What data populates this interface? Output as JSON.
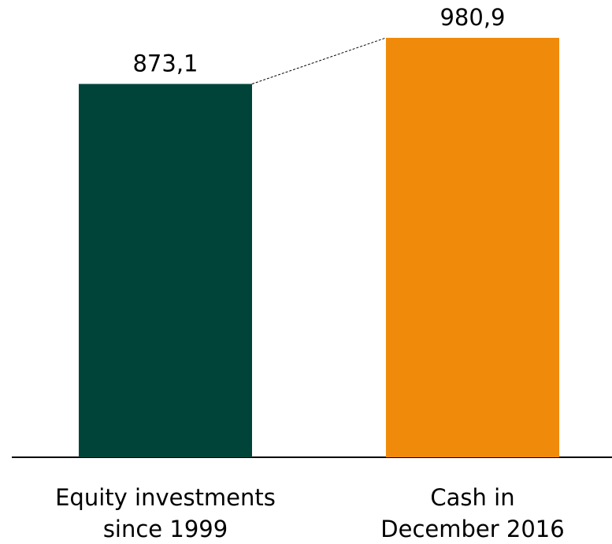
{
  "chart_data": {
    "type": "bar",
    "categories": [
      [
        "Equity investments",
        "since 1999"
      ],
      [
        "Cash in",
        "December 2016"
      ]
    ],
    "values": [
      873.1,
      980.9
    ],
    "value_labels": [
      "873,1",
      "980,9"
    ],
    "colors": [
      "#004439",
      "#f08a0a"
    ]
  }
}
